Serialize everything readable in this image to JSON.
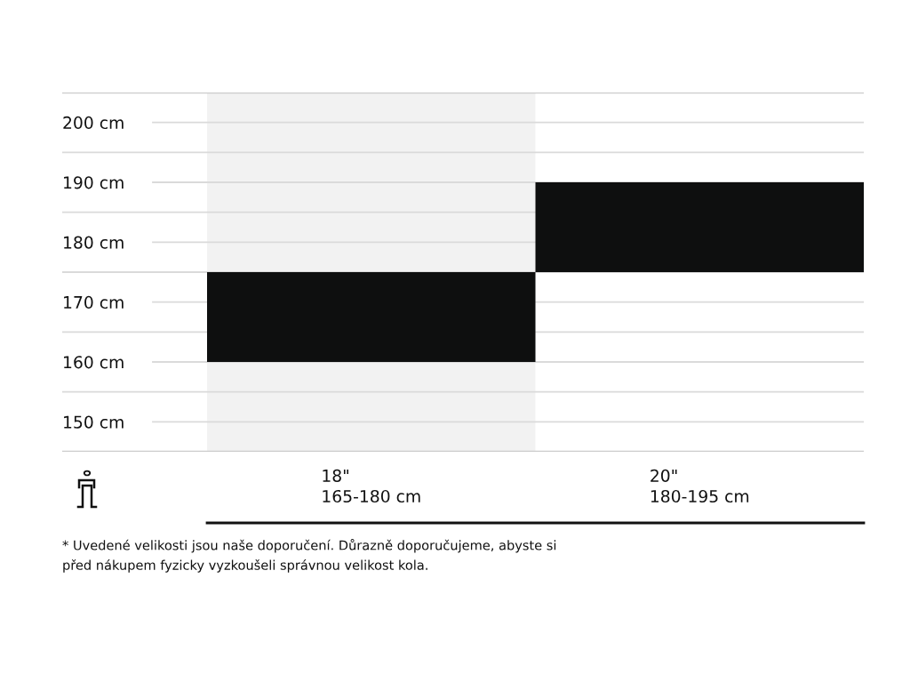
{
  "chart_data": {
    "type": "bar",
    "categories": [
      "18\"\n165-180 cm",
      "20\"\n180-195 cm"
    ],
    "values": [
      15,
      15
    ],
    "base": [
      160,
      175
    ],
    "color": "#0e0f0f",
    "ylim": [
      145,
      205
    ],
    "yticks": [
      {
        "value": 145,
        "label": null
      },
      {
        "value": 150,
        "label": "150 cm"
      },
      {
        "value": 155,
        "label": null
      },
      {
        "value": 160,
        "label": "160 cm"
      },
      {
        "value": 165,
        "label": null
      },
      {
        "value": 170,
        "label": "170 cm"
      },
      {
        "value": 175,
        "label": null
      },
      {
        "value": 180,
        "label": "180 cm"
      },
      {
        "value": 185,
        "label": null
      },
      {
        "value": 190,
        "label": "190 cm"
      },
      {
        "value": 195,
        "label": null
      },
      {
        "value": 200,
        "label": "200 cm"
      },
      {
        "value": 205,
        "label": null
      }
    ],
    "grid": "y",
    "bands": [
      {
        "axis": "x",
        "from": "18\"\n165-180 cm",
        "to": "18\"\n165-180 cm",
        "color": "#f2f2f2"
      }
    ],
    "annotations": [
      "* Uvedené velikosti jsou naše doporučení. Důrazně doporučujeme, abyste si\npřed nákupem fyzicky vyzkoušeli správnou velikost kola."
    ]
  }
}
